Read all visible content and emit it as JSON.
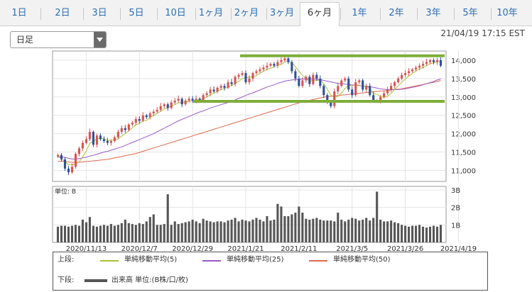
{
  "tabs": [
    {
      "label": "1日"
    },
    {
      "label": "2日"
    },
    {
      "label": "3日"
    },
    {
      "label": "5日"
    },
    {
      "label": "10日"
    },
    {
      "label": "1ヶ月"
    },
    {
      "label": "2ヶ月"
    },
    {
      "label": "3ヶ月"
    },
    {
      "label": "6ヶ月",
      "active": true
    },
    {
      "label": "1年"
    },
    {
      "label": "2年"
    },
    {
      "label": "3年"
    },
    {
      "label": "5年"
    },
    {
      "label": "10年"
    }
  ],
  "period_select": {
    "value": "日足"
  },
  "timestamp": "21/04/19 17:15 EST",
  "colors": {
    "up": "#d9534f",
    "down": "#2e4f9a",
    "ma5": "#a9c23a",
    "ma25": "#9a59c9",
    "ma50": "#e0694c",
    "volume": "#555555",
    "resistance": "#7fae3a",
    "grid": "#e4e4e4"
  },
  "chart_data": [
    {
      "type": "candlestick",
      "title": "",
      "y_ticks": [
        "14,000",
        "13,500",
        "13,000",
        "12,500",
        "12,000",
        "11,500",
        "11,000"
      ],
      "ylim": [
        10700,
        14250
      ],
      "x_ticks": [
        "2020/11/13",
        "2020/12/7",
        "2020/12/29",
        "2021/1/21",
        "2021/2/11",
        "2021/3/5",
        "2021/3/26",
        "2021/4/19"
      ],
      "x_tick_index": [
        8,
        23,
        38,
        53,
        68,
        83,
        98,
        113
      ],
      "series": [
        {
          "name": "単純移動平均(5)",
          "kind": "ma5"
        },
        {
          "name": "単純移動平均(25)",
          "kind": "ma25"
        },
        {
          "name": "単純移動平均(50)",
          "kind": "ma50"
        }
      ],
      "close": [
        11420,
        11300,
        11050,
        10950,
        11100,
        11450,
        11600,
        11750,
        11850,
        12050,
        11700,
        11950,
        11850,
        11800,
        11750,
        11800,
        11900,
        12050,
        12150,
        12100,
        12250,
        12300,
        12400,
        12350,
        12500,
        12450,
        12550,
        12600,
        12650,
        12750,
        12800,
        12700,
        12850,
        12900,
        12950,
        12800,
        12900,
        12950,
        12900,
        12950,
        12900,
        13050,
        13100,
        13200,
        13150,
        13250,
        13300,
        13250,
        13400,
        13350,
        13550,
        13600,
        13650,
        13400,
        13500,
        13650,
        13700,
        13750,
        13800,
        13850,
        13900,
        13850,
        13950,
        14000,
        14050,
        13950,
        13700,
        13500,
        13300,
        13450,
        13550,
        13350,
        13600,
        13500,
        13300,
        13050,
        12850,
        12750,
        13150,
        13300,
        13450,
        13500,
        13200,
        13050,
        13400,
        13450,
        13200,
        13300,
        13050,
        12900,
        12900,
        13000,
        13100,
        13200,
        13300,
        13400,
        13500,
        13600,
        13650,
        13700,
        13750,
        13800,
        13850,
        13900,
        13950,
        14000,
        13950,
        14000,
        13850
      ],
      "open": [
        11380,
        11420,
        11300,
        11050,
        10950,
        11100,
        11450,
        11600,
        11750,
        11850,
        12050,
        11700,
        11950,
        11850,
        11800,
        11750,
        11800,
        11900,
        12050,
        12150,
        12100,
        12250,
        12300,
        12400,
        12350,
        12500,
        12450,
        12550,
        12600,
        12650,
        12750,
        12800,
        12700,
        12850,
        12900,
        12950,
        12800,
        12900,
        12950,
        12900,
        12950,
        12900,
        13050,
        13100,
        13200,
        13150,
        13250,
        13300,
        13250,
        13400,
        13350,
        13550,
        13600,
        13650,
        13400,
        13500,
        13650,
        13700,
        13750,
        13800,
        13850,
        13900,
        13850,
        13950,
        14000,
        14050,
        13950,
        13700,
        13500,
        13300,
        13450,
        13550,
        13350,
        13600,
        13500,
        13300,
        13050,
        12850,
        12750,
        13150,
        13300,
        13450,
        13500,
        13200,
        13050,
        13400,
        13450,
        13200,
        13300,
        13050,
        12900,
        12900,
        13000,
        13100,
        13200,
        13300,
        13400,
        13500,
        13600,
        13650,
        13700,
        13750,
        13800,
        13850,
        13900,
        13950,
        14000,
        13950,
        14000
      ],
      "volume": [
        0.9,
        0.95,
        0.95,
        0.9,
        0.95,
        1.0,
        0.95,
        1.3,
        1.15,
        1.45,
        0.95,
        0.9,
        0.95,
        1.0,
        0.95,
        1.05,
        0.95,
        1.0,
        1.1,
        1.3,
        1.1,
        1.05,
        1.0,
        1.1,
        1.05,
        1.2,
        1.45,
        1.6,
        1.0,
        1.0,
        1.05,
        2.75,
        1.0,
        1.2,
        1.05,
        1.1,
        1.15,
        1.2,
        1.3,
        1.2,
        1.1,
        1.35,
        1.25,
        1.2,
        1.15,
        1.2,
        1.2,
        1.15,
        1.25,
        1.3,
        1.4,
        1.2,
        1.3,
        1.25,
        1.2,
        1.3,
        1.4,
        1.3,
        1.2,
        1.5,
        1.25,
        1.3,
        2.2,
        2.05,
        1.5,
        1.5,
        1.6,
        1.7,
        2.05,
        1.7,
        1.35,
        1.3,
        1.35,
        1.4,
        1.3,
        1.25,
        1.25,
        1.25,
        1.2,
        1.7,
        1.3,
        1.2,
        1.3,
        1.4,
        1.35,
        1.25,
        1.3,
        1.4,
        1.25,
        1.4,
        2.9,
        1.3,
        1.2,
        1.2,
        1.25,
        1.15,
        1.1,
        1.0,
        0.95,
        0.9,
        0.95,
        0.95,
        1.0,
        0.9,
        0.85,
        0.9,
        0.95,
        0.9,
        1.0
      ],
      "vol_ticks": [
        "3B",
        "2B",
        "1B"
      ],
      "vol_label": "単位: B",
      "ma5": [
        11380,
        11330,
        11230,
        11160,
        11160,
        11170,
        11230,
        11370,
        11530,
        11740,
        11790,
        11860,
        11870,
        11870,
        11810,
        11830,
        11820,
        11860,
        11930,
        12000,
        12080,
        12160,
        12240,
        12280,
        12360,
        12360,
        12450,
        12490,
        12550,
        12610,
        12670,
        12700,
        12760,
        12790,
        12840,
        12850,
        12870,
        12870,
        12910,
        12910,
        12920,
        12950,
        13000,
        13060,
        13100,
        13150,
        13200,
        13230,
        13270,
        13310,
        13370,
        13420,
        13500,
        13520,
        13540,
        13540,
        13580,
        13640,
        13700,
        13750,
        13780,
        13820,
        13860,
        13890,
        13950,
        13970,
        13930,
        13830,
        13700,
        13590,
        13500,
        13430,
        13450,
        13450,
        13460,
        13360,
        13210,
        13050,
        12990,
        13020,
        13110,
        13230,
        13320,
        13300,
        13330,
        13320,
        13300,
        13280,
        13250,
        13090,
        13070,
        13020,
        12990,
        13020,
        13100,
        13200,
        13300,
        13400,
        13490,
        13570,
        13640,
        13700,
        13760,
        13800,
        13850,
        13900,
        13930,
        13960,
        13960
      ],
      "ma25": [
        11380,
        11370,
        11350,
        11330,
        11310,
        11310,
        11320,
        11340,
        11360,
        11390,
        11410,
        11440,
        11470,
        11500,
        11520,
        11550,
        11580,
        11610,
        11640,
        11680,
        11720,
        11760,
        11800,
        11840,
        11880,
        11920,
        11960,
        12000,
        12050,
        12100,
        12150,
        12200,
        12250,
        12300,
        12350,
        12390,
        12430,
        12470,
        12510,
        12550,
        12590,
        12620,
        12660,
        12700,
        12730,
        12760,
        12790,
        12820,
        12850,
        12880,
        12920,
        12960,
        13000,
        13040,
        13080,
        13110,
        13150,
        13190,
        13230,
        13270,
        13300,
        13330,
        13370,
        13400,
        13430,
        13450,
        13460,
        13470,
        13480,
        13490,
        13490,
        13490,
        13490,
        13480,
        13470,
        13450,
        13430,
        13410,
        13390,
        13370,
        13360,
        13350,
        13340,
        13330,
        13320,
        13310,
        13300,
        13290,
        13280,
        13260,
        13240,
        13220,
        13210,
        13200,
        13200,
        13200,
        13200,
        13210,
        13220,
        13240,
        13260,
        13280,
        13300,
        13330,
        13360,
        13390,
        13420,
        13460,
        13490
      ],
      "ma50": [
        11250,
        11250,
        11240,
        11230,
        11220,
        11220,
        11220,
        11230,
        11240,
        11250,
        11260,
        11270,
        11280,
        11290,
        11300,
        11320,
        11340,
        11360,
        11380,
        11400,
        11420,
        11440,
        11460,
        11490,
        11520,
        11550,
        11580,
        11610,
        11640,
        11670,
        11700,
        11730,
        11760,
        11790,
        11820,
        11850,
        11880,
        11910,
        11940,
        11970,
        12000,
        12030,
        12060,
        12090,
        12120,
        12150,
        12180,
        12210,
        12240,
        12270,
        12300,
        12330,
        12360,
        12390,
        12420,
        12450,
        12480,
        12510,
        12540,
        12570,
        12600,
        12630,
        12660,
        12690,
        12720,
        12750,
        12780,
        12810,
        12840,
        12870,
        12890,
        12910,
        12930,
        12950,
        12970,
        12990,
        13010,
        13020,
        13030,
        13040,
        13050,
        13060,
        13070,
        13080,
        13090,
        13100,
        13110,
        13120,
        13130,
        13140,
        13150,
        13160,
        13170,
        13180,
        13190,
        13200,
        13210,
        13220,
        13240,
        13260,
        13280,
        13300,
        13320,
        13340,
        13360,
        13380,
        13400,
        13420,
        13450
      ]
    }
  ],
  "legend": {
    "upper_label": "上段:",
    "lower_label": "下段:",
    "ma5_label": "単純移動平均(5)",
    "ma25_label": "単純移動平均(25)",
    "ma50_label": "単純移動平均(50)",
    "volume_label": "出来高 単位:(B株/口/枚)"
  }
}
